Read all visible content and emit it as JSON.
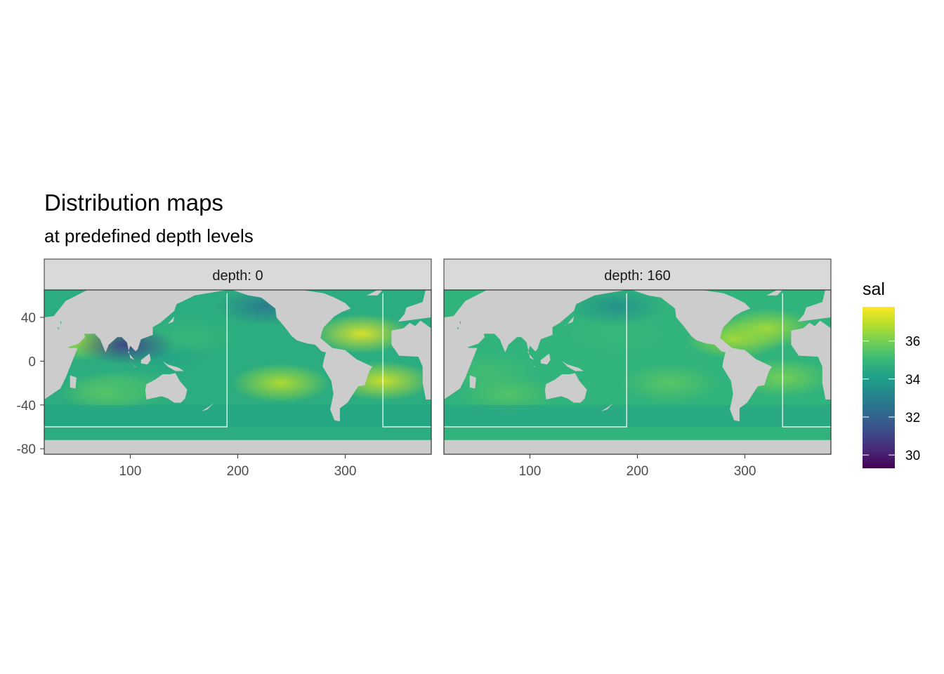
{
  "title": "Distribution maps",
  "subtitle": "at predefined depth levels",
  "colors": {
    "land": "#cccccc",
    "strip": "#d9d9d9",
    "frame": "#333333",
    "tick_text": "#4d4d4d",
    "boundary": "#ffffff",
    "viridis": [
      "#440154",
      "#482878",
      "#3e4a89",
      "#31688e",
      "#26828e",
      "#1f9e89",
      "#35b779",
      "#6ece58",
      "#b5de2b",
      "#fde725"
    ]
  },
  "legend": {
    "title": "sal",
    "scale": "viridis",
    "limits": [
      29.3,
      37.8
    ],
    "breaks": [
      30,
      32,
      34,
      36
    ],
    "break_labels": [
      "30",
      "32",
      "34",
      "36"
    ]
  },
  "chart_data": {
    "type": "heatmap",
    "variable": "sal",
    "xlim": [
      20,
      380
    ],
    "ylim": [
      -85,
      65
    ],
    "x_breaks": [
      100,
      200,
      300
    ],
    "x_tick_labels": [
      "100",
      "200",
      "300"
    ],
    "y_breaks": [
      40,
      0,
      -40,
      -80
    ],
    "y_tick_labels": [
      "40",
      "0",
      "-40",
      "-80"
    ],
    "grid": false,
    "legend_position": "right",
    "region_boundary": {
      "lon_west": 190,
      "lon_east": 335,
      "lat_south": -60
    },
    "panels": [
      {
        "strip_label": "depth: 0",
        "salinity_features": [
          {
            "lon": 50,
            "lat": 18,
            "value": 36.5
          },
          {
            "lon": 80,
            "lat": -28,
            "value": 35.8
          },
          {
            "lon": 100,
            "lat": -25,
            "value": 35.2
          },
          {
            "lon": 130,
            "lat": 5,
            "value": 34.2
          },
          {
            "lon": 155,
            "lat": 22,
            "value": 35.0
          },
          {
            "lon": 240,
            "lat": -20,
            "value": 36.8
          },
          {
            "lon": 315,
            "lat": 25,
            "value": 37.4
          },
          {
            "lon": 335,
            "lat": -18,
            "value": 37.2
          },
          {
            "lon": 225,
            "lat": 50,
            "value": 32.8
          },
          {
            "lon": 95,
            "lat": 15,
            "value": 31.0
          }
        ]
      },
      {
        "strip_label": "depth: 160",
        "salinity_features": [
          {
            "lon": 60,
            "lat": -10,
            "value": 35.2
          },
          {
            "lon": 80,
            "lat": -30,
            "value": 35.5
          },
          {
            "lon": 180,
            "lat": 25,
            "value": 35.0
          },
          {
            "lon": 230,
            "lat": -20,
            "value": 35.6
          },
          {
            "lon": 290,
            "lat": 20,
            "value": 36.6
          },
          {
            "lon": 320,
            "lat": 30,
            "value": 36.6
          },
          {
            "lon": 335,
            "lat": -15,
            "value": 36.0
          },
          {
            "lon": 180,
            "lat": 50,
            "value": 33.6
          }
        ]
      }
    ]
  }
}
